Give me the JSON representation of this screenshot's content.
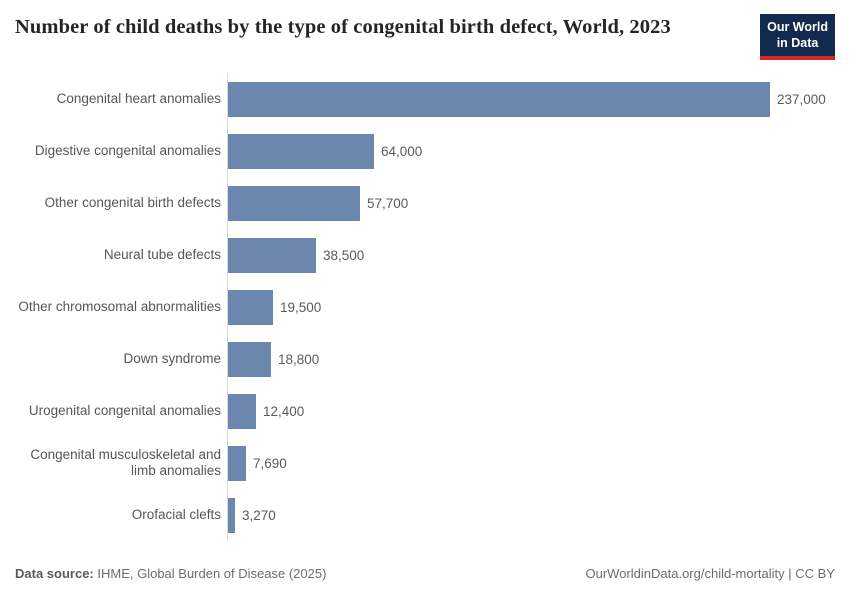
{
  "header": {
    "title": "Number of child deaths by the type of congenital birth defect, World, 2023",
    "logo": {
      "line1": "Our World",
      "line2": "in Data"
    }
  },
  "chart_data": {
    "type": "bar",
    "orientation": "horizontal",
    "title": "Number of child deaths by the type of congenital birth defect, World, 2023",
    "categories": [
      "Congenital heart anomalies",
      "Digestive congenital anomalies",
      "Other congenital birth defects",
      "Neural tube defects",
      "Other chromosomal abnormalities",
      "Down syndrome",
      "Urogenital congenital anomalies",
      "Congenital musculoskeletal and limb anomalies",
      "Orofacial clefts"
    ],
    "values": [
      237000,
      64000,
      57700,
      38500,
      19500,
      18800,
      12400,
      7690,
      3270
    ],
    "value_labels": [
      "237,000",
      "64,000",
      "57,700",
      "38,500",
      "19,500",
      "18,800",
      "12,400",
      "7,690",
      "3,270"
    ],
    "xlabel": "",
    "ylabel": "",
    "xlim": [
      0,
      237000
    ],
    "grid": false,
    "legend": "none",
    "bar_color": "#6c87ad"
  },
  "footer": {
    "datasource_label": "Data source:",
    "datasource_value": " IHME, Global Burden of Disease (2025)",
    "attribution": "OurWorldinData.org/child-mortality | CC BY"
  },
  "colors": {
    "bar": "#6c87ad",
    "axis_line": "#dadada",
    "category_label": "#53575c",
    "value_label": "#5b5b5b",
    "title": "#252525",
    "footer_text": "#6d6d6d",
    "logo_background": "#122a4e",
    "logo_accent": "#d02a21"
  }
}
